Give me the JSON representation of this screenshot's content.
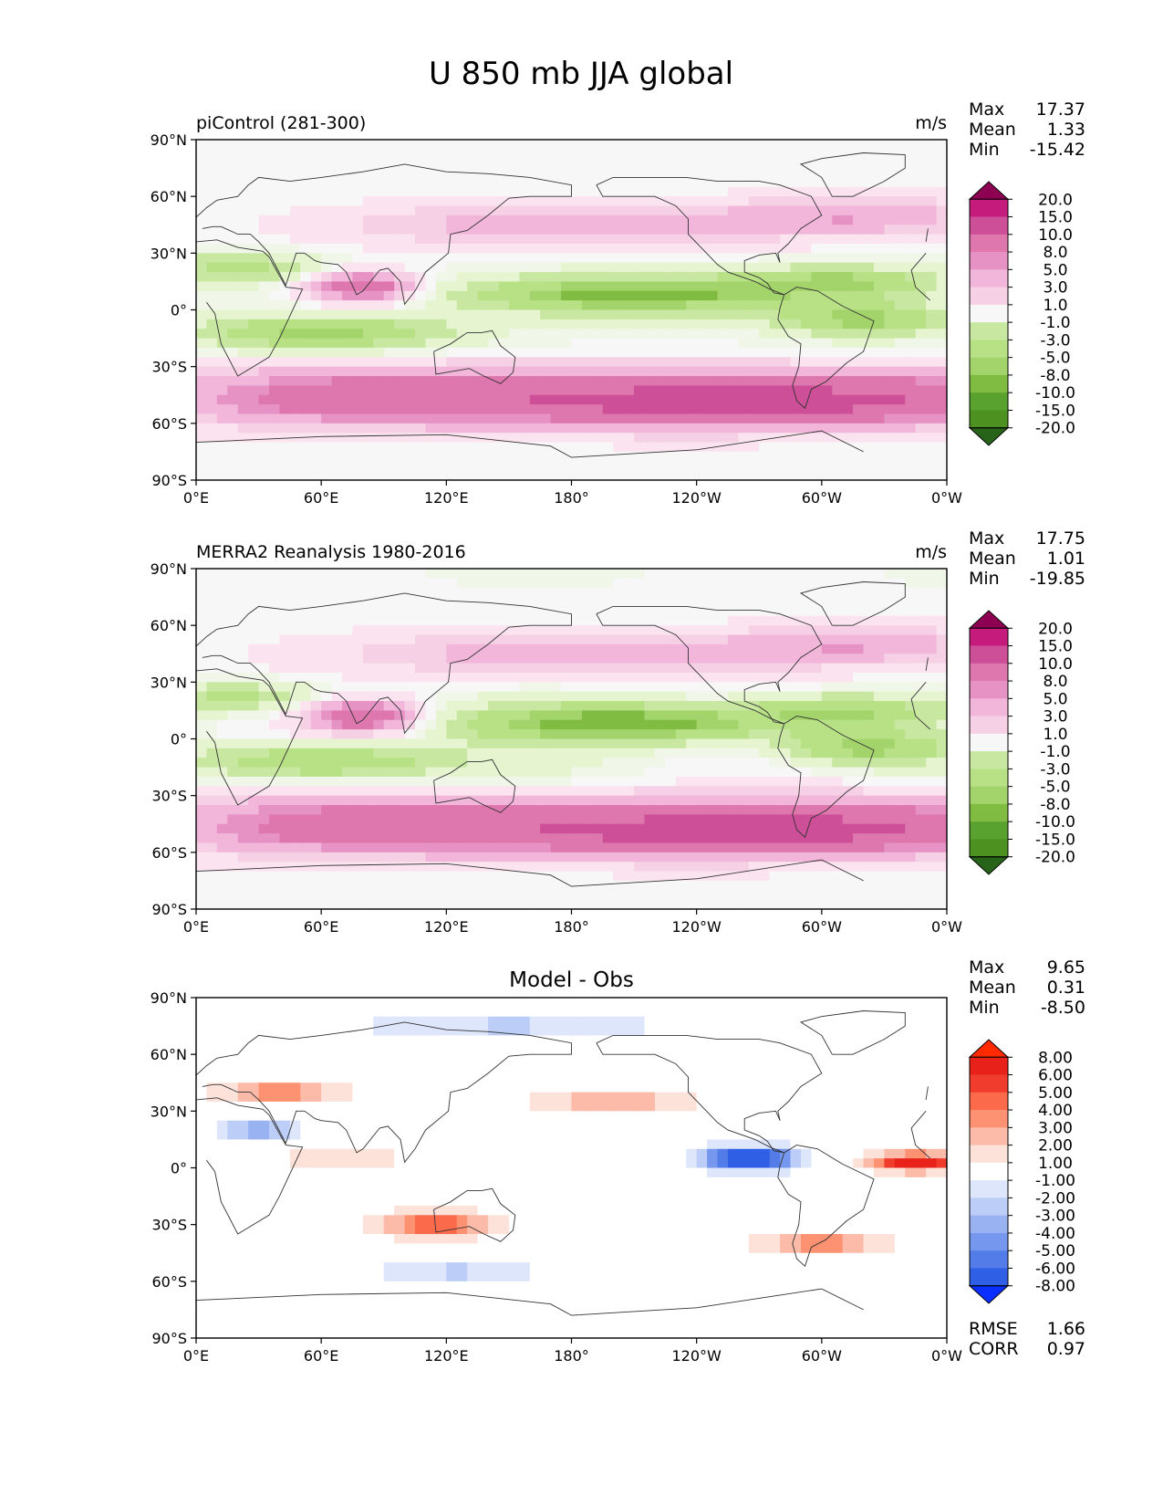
{
  "figure": {
    "title": "U 850 mb JJA global"
  },
  "colors": {
    "frame": "#000000",
    "coast": "#333333",
    "pos_scale": [
      "#f7f7f7",
      "#fbe4ef",
      "#f6d0e4",
      "#f1b6da",
      "#e692c4",
      "#de77ae",
      "#cc4f98",
      "#c51b7d",
      "#8e0152"
    ],
    "neg_scale": [
      "#f0f6e8",
      "#e6f5d0",
      "#c8e7a1",
      "#b8e186",
      "#a3d36b",
      "#7fbc41",
      "#5aa22f",
      "#4d9221",
      "#276419"
    ],
    "diff_pos": [
      "#ffffff",
      "#fde2da",
      "#fcbba9",
      "#fc9272",
      "#fb6a4a",
      "#f03c2c",
      "#e8221a",
      "#ff2a00"
    ],
    "diff_neg": [
      "#ffffff",
      "#dde6fb",
      "#bccdf7",
      "#99b2f2",
      "#7697ee",
      "#547ce9",
      "#2f5fe4",
      "#0a2fff"
    ]
  },
  "chart_data": [
    {
      "type": "heatmap",
      "title_left": "piControl (281-300)",
      "units": "m/s",
      "stats": [
        {
          "label": "Max",
          "value": "17.37"
        },
        {
          "label": "Mean",
          "value": "1.33"
        },
        {
          "label": "Min",
          "value": "-15.42"
        }
      ],
      "x_ticks": [
        "0°E",
        "60°E",
        "120°E",
        "180°",
        "120°W",
        "60°W",
        "0°W"
      ],
      "y_ticks": [
        "90°N",
        "60°N",
        "30°N",
        "0°",
        "30°S",
        "60°S",
        "90°S"
      ],
      "xlim": [
        0,
        360
      ],
      "ylim": [
        -90,
        90
      ],
      "colorbar": [
        "20.0",
        "15.0",
        "10.0",
        "8.0",
        "5.0",
        "3.0",
        "1.0",
        "-1.0",
        "-3.0",
        "-5.0",
        "-8.0",
        "-10.0",
        "-15.0",
        "-20.0"
      ],
      "colormap": "PiYG reversed"
    },
    {
      "type": "heatmap",
      "title_left": "MERRA2 Reanalysis 1980-2016",
      "units": "m/s",
      "stats": [
        {
          "label": "Max",
          "value": "17.75"
        },
        {
          "label": "Mean",
          "value": "1.01"
        },
        {
          "label": "Min",
          "value": "-19.85"
        }
      ],
      "x_ticks": [
        "0°E",
        "60°E",
        "120°E",
        "180°",
        "120°W",
        "60°W",
        "0°W"
      ],
      "y_ticks": [
        "90°N",
        "60°N",
        "30°N",
        "0°",
        "30°S",
        "60°S",
        "90°S"
      ],
      "xlim": [
        0,
        360
      ],
      "ylim": [
        -90,
        90
      ],
      "colorbar": [
        "20.0",
        "15.0",
        "10.0",
        "8.0",
        "5.0",
        "3.0",
        "1.0",
        "-1.0",
        "-3.0",
        "-5.0",
        "-8.0",
        "-10.0",
        "-15.0",
        "-20.0"
      ],
      "colormap": "PiYG reversed"
    },
    {
      "type": "heatmap",
      "title_center": "Model - Obs",
      "stats": [
        {
          "label": "Max",
          "value": "9.65"
        },
        {
          "label": "Mean",
          "value": "0.31"
        },
        {
          "label": "Min",
          "value": "-8.50"
        }
      ],
      "x_ticks": [
        "0°E",
        "60°E",
        "120°E",
        "180°",
        "120°W",
        "60°W",
        "0°W"
      ],
      "y_ticks": [
        "90°N",
        "60°N",
        "30°N",
        "0°",
        "30°S",
        "60°S",
        "90°S"
      ],
      "xlim": [
        0,
        360
      ],
      "ylim": [
        -90,
        90
      ],
      "colorbar": [
        "8.00",
        "6.00",
        "5.00",
        "4.00",
        "3.00",
        "2.00",
        "1.00",
        "-1.00",
        "-2.00",
        "-3.00",
        "-4.00",
        "-5.00",
        "-6.00",
        "-8.00"
      ],
      "colormap": "blue-white-red",
      "footer_stats": [
        {
          "label": "RMSE",
          "value": "1.66"
        },
        {
          "label": "CORR",
          "value": "0.97"
        }
      ]
    }
  ]
}
